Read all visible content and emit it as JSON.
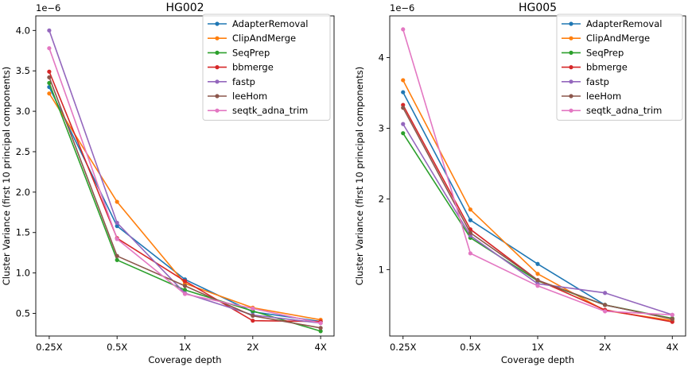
{
  "chart_data": [
    {
      "type": "line",
      "title": "HG002",
      "xlabel": "Coverage depth",
      "ylabel": "Cluster Variance (first 10 principal components)",
      "offset_label": "1e−6",
      "categories": [
        "0.25X",
        "0.5X",
        "1X",
        "2X",
        "4X"
      ],
      "ylim": [
        0.22,
        4.18
      ],
      "yticks": [
        0.5,
        1.0,
        1.5,
        2.0,
        2.5,
        3.0,
        3.5,
        4.0
      ],
      "ytick_labels": [
        "0.5",
        "1.0",
        "1.5",
        "2.0",
        "2.5",
        "3.0",
        "3.5",
        "4.0"
      ],
      "series": [
        {
          "name": "AdapterRemoval",
          "color": "#1f77b4",
          "values": [
            3.3,
            1.58,
            0.92,
            0.52,
            0.4
          ]
        },
        {
          "name": "ClipAndMerge",
          "color": "#ff7f0e",
          "values": [
            3.22,
            1.88,
            0.87,
            0.57,
            0.42
          ]
        },
        {
          "name": "SeqPrep",
          "color": "#2ca02c",
          "values": [
            3.35,
            1.16,
            0.79,
            0.53,
            0.28
          ]
        },
        {
          "name": "bbmerge",
          "color": "#d62728",
          "values": [
            3.49,
            1.43,
            0.9,
            0.41,
            0.4
          ]
        },
        {
          "name": "fastp",
          "color": "#9467bd",
          "values": [
            4.0,
            1.62,
            0.75,
            0.48,
            0.38
          ]
        },
        {
          "name": "leeHom",
          "color": "#8c564b",
          "values": [
            3.42,
            1.21,
            0.84,
            0.47,
            0.32
          ]
        },
        {
          "name": "seqtk_adna_trim",
          "color": "#e377c2",
          "values": [
            3.78,
            1.42,
            0.74,
            0.56,
            0.38
          ]
        }
      ]
    },
    {
      "type": "line",
      "title": "HG005",
      "xlabel": "Coverage depth",
      "ylabel": "Cluster Variance (first 10 principal components)",
      "offset_label": "1e−6",
      "categories": [
        "0.25X",
        "0.5X",
        "1X",
        "2X",
        "4X"
      ],
      "ylim": [
        0.06,
        4.59
      ],
      "yticks": [
        1,
        2,
        3,
        4
      ],
      "ytick_labels": [
        "1",
        "2",
        "3",
        "4"
      ],
      "series": [
        {
          "name": "AdapterRemoval",
          "color": "#1f77b4",
          "values": [
            3.51,
            1.7,
            1.08,
            0.5,
            0.3
          ]
        },
        {
          "name": "ClipAndMerge",
          "color": "#ff7f0e",
          "values": [
            3.68,
            1.85,
            0.94,
            0.42,
            0.28
          ]
        },
        {
          "name": "SeqPrep",
          "color": "#2ca02c",
          "values": [
            2.93,
            1.45,
            0.84,
            0.5,
            0.31
          ]
        },
        {
          "name": "bbmerge",
          "color": "#d62728",
          "values": [
            3.33,
            1.57,
            0.85,
            0.43,
            0.26
          ]
        },
        {
          "name": "fastp",
          "color": "#9467bd",
          "values": [
            3.06,
            1.48,
            0.8,
            0.67,
            0.36
          ]
        },
        {
          "name": "leeHom",
          "color": "#8c564b",
          "values": [
            3.29,
            1.52,
            0.85,
            0.5,
            0.3
          ]
        },
        {
          "name": "seqtk_adna_trim",
          "color": "#e377c2",
          "values": [
            4.4,
            1.23,
            0.77,
            0.41,
            0.36
          ]
        }
      ]
    }
  ]
}
